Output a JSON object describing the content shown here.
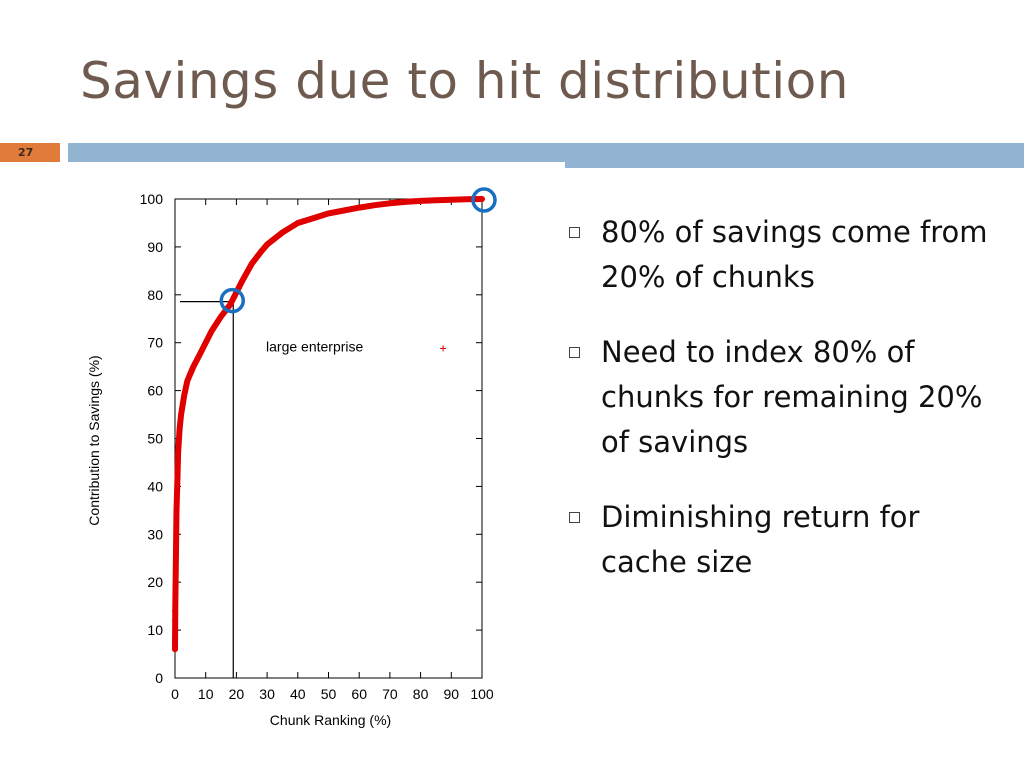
{
  "slide": {
    "title": "Savings due to hit distribution",
    "number": "27",
    "colors": {
      "title": "#6e5a4e",
      "accent_orange": "#e07b39",
      "accent_blue": "#93b3d3",
      "series": "#e00000",
      "highlight": "#1a6fc0"
    }
  },
  "bullets": [
    {
      "text": "80% of savings come from 20% of chunks"
    },
    {
      "text": "Need to index 80% of chunks for remaining 20% of savings"
    },
    {
      "text": "Diminishing return for cache size"
    }
  ],
  "chart_data": {
    "type": "line",
    "title": "",
    "xlabel": "Chunk Ranking (%)",
    "ylabel": "Contribution to Savings (%)",
    "xlim": [
      0,
      100
    ],
    "ylim": [
      0,
      100
    ],
    "xticks": [
      0,
      10,
      20,
      30,
      40,
      50,
      60,
      70,
      80,
      90,
      100
    ],
    "yticks": [
      0,
      10,
      20,
      30,
      40,
      50,
      60,
      70,
      80,
      90,
      100
    ],
    "legend": "center-right",
    "grid": false,
    "series": [
      {
        "name": "large enterprise",
        "marker": "+",
        "x": [
          0,
          0.1,
          0.3,
          0.5,
          0.8,
          1,
          1.5,
          2,
          3,
          4,
          5,
          6,
          8,
          10,
          12,
          15,
          18,
          20,
          22,
          25,
          28,
          30,
          35,
          40,
          45,
          50,
          55,
          60,
          65,
          70,
          75,
          80,
          85,
          90,
          95,
          100
        ],
        "y": [
          6,
          15,
          25,
          35,
          42,
          47,
          52,
          55,
          59,
          62,
          63.5,
          65,
          67.5,
          70,
          72.5,
          75.5,
          78,
          80.5,
          83,
          86.5,
          89,
          90.5,
          93,
          95,
          96,
          97,
          97.6,
          98.2,
          98.7,
          99.1,
          99.4,
          99.6,
          99.75,
          99.85,
          99.95,
          100
        ]
      }
    ],
    "annotations": {
      "reference_point": {
        "x": 18,
        "y": 79
      },
      "circled_points": [
        {
          "x": 18,
          "y": 79
        },
        {
          "x": 100,
          "y": 100
        }
      ]
    }
  }
}
